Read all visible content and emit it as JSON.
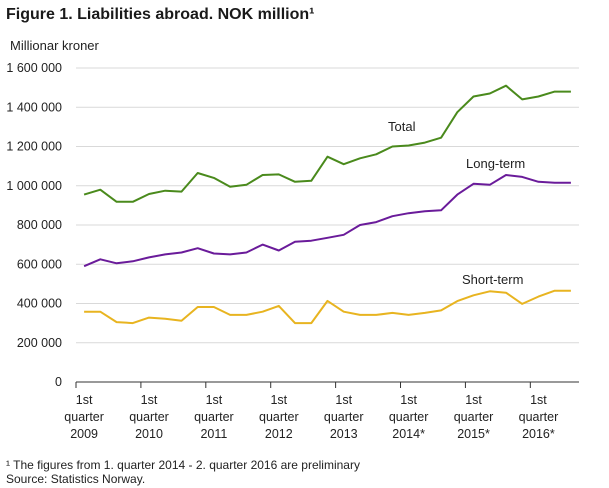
{
  "figure_title": "Figure 1. Liabilities abroad. NOK million¹",
  "y_unit_label": "Millionar  kroner",
  "footnote": "¹ The figures from 1. quarter 2014 - 2. quarter 2016 are preliminary",
  "source": "Source: Statistics Norway.",
  "chart_data": {
    "type": "line",
    "title": "Figure 1. Liabilities abroad. NOK million¹",
    "ylabel": "Millionar  kroner",
    "xlabel": "",
    "ylim": [
      0,
      1600000
    ],
    "yticks": [
      0,
      200000,
      400000,
      600000,
      800000,
      1000000,
      1200000,
      1400000,
      1600000
    ],
    "ytick_labels": [
      "0",
      "200 000",
      "400 000",
      "600 000",
      "800 000",
      "1 000 000",
      "1 200 000",
      "1 400 000",
      "1 600 000"
    ],
    "grid": true,
    "x": [
      "2009Q1",
      "2009Q2",
      "2009Q3",
      "2009Q4",
      "2010Q1",
      "2010Q2",
      "2010Q3",
      "2010Q4",
      "2011Q1",
      "2011Q2",
      "2011Q3",
      "2011Q4",
      "2012Q1",
      "2012Q2",
      "2012Q3",
      "2012Q4",
      "2013Q1",
      "2013Q2",
      "2013Q3",
      "2013Q4",
      "2014Q1",
      "2014Q2",
      "2014Q3",
      "2014Q4",
      "2015Q1",
      "2015Q2",
      "2015Q3",
      "2015Q4",
      "2016Q1",
      "2016Q2",
      "2016Q3"
    ],
    "xtick_labels": [
      [
        "1st",
        "quarter",
        "2009"
      ],
      [
        "1st",
        "quarter",
        "2010"
      ],
      [
        "1st",
        "quarter",
        "2011"
      ],
      [
        "1st",
        "quarter",
        "2012"
      ],
      [
        "1st",
        "quarter",
        "2013"
      ],
      [
        "1st",
        "quarter",
        "2014*"
      ],
      [
        "1st",
        "quarter",
        "2015*"
      ],
      [
        "1st",
        "quarter",
        "2016*"
      ]
    ],
    "series": [
      {
        "name": "Total",
        "color": "#4a8a1c",
        "values": [
          955000,
          980000,
          918000,
          918000,
          958000,
          975000,
          970000,
          1065000,
          1040000,
          995000,
          1005000,
          1055000,
          1058000,
          1020000,
          1025000,
          1148000,
          1110000,
          1140000,
          1160000,
          1200000,
          1205000,
          1220000,
          1245000,
          1375000,
          1455000,
          1470000,
          1510000,
          1440000,
          1455000,
          1480000,
          1480000
        ]
      },
      {
        "name": "Long-term",
        "color": "#6a1b9a",
        "values": [
          590000,
          625000,
          605000,
          615000,
          635000,
          650000,
          660000,
          682000,
          655000,
          650000,
          660000,
          700000,
          670000,
          715000,
          720000,
          735000,
          750000,
          800000,
          815000,
          845000,
          860000,
          870000,
          875000,
          955000,
          1010000,
          1005000,
          1055000,
          1045000,
          1020000,
          1015000,
          1015000
        ]
      },
      {
        "name": "Short-term",
        "color": "#e8b420",
        "values": [
          358000,
          358000,
          305000,
          300000,
          328000,
          322000,
          312000,
          382000,
          382000,
          342000,
          342000,
          358000,
          388000,
          300000,
          300000,
          413000,
          358000,
          342000,
          342000,
          352000,
          342000,
          352000,
          365000,
          412000,
          442000,
          462000,
          455000,
          398000,
          435000,
          465000,
          465000
        ]
      }
    ]
  }
}
